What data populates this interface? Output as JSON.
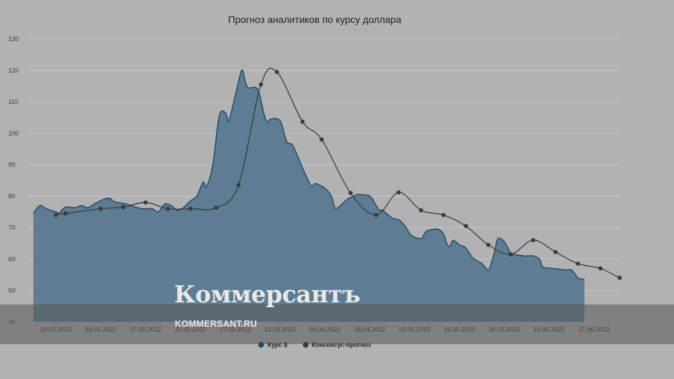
{
  "chart_data": {
    "type": "area",
    "title": "Прогноз аналитиков по курсу доллара",
    "xlabel": "",
    "ylabel": "",
    "ylim": [
      40,
      130
    ],
    "yticks": [
      40,
      50,
      60,
      70,
      80,
      90,
      100,
      110,
      120,
      130
    ],
    "xlim": [
      "2022-01-03",
      "2022-07-05"
    ],
    "xtick_labels": [
      "10.01.2022",
      "24.01.2022",
      "07.02.2022",
      "21.02.2022",
      "07.03.2022",
      "21.03.2022",
      "04.04.2022",
      "18.04.2022",
      "02.05.2022",
      "16.05.2022",
      "30.05.2022",
      "13.06.2022",
      "27.06.2022"
    ],
    "grid": true,
    "legend_position": "bottom",
    "series": [
      {
        "name": "Курс $",
        "type": "area",
        "color": "#5a7a90",
        "line_color": "#1e4a6a",
        "points": [
          [
            "2022-01-03",
            74.5
          ],
          [
            "2022-01-05",
            77
          ],
          [
            "2022-01-07",
            76
          ],
          [
            "2022-01-10",
            75
          ],
          [
            "2022-01-11",
            74.6
          ],
          [
            "2022-01-13",
            76.5
          ],
          [
            "2022-01-16",
            76.3
          ],
          [
            "2022-01-18",
            77
          ],
          [
            "2022-01-20",
            76.3
          ],
          [
            "2022-01-22",
            77.5
          ],
          [
            "2022-01-25",
            79
          ],
          [
            "2022-01-27",
            79.3
          ],
          [
            "2022-01-28",
            78.3
          ],
          [
            "2022-02-01",
            77.5
          ],
          [
            "2022-02-04",
            76.5
          ],
          [
            "2022-02-06",
            76
          ],
          [
            "2022-02-09",
            76
          ],
          [
            "2022-02-11",
            75
          ],
          [
            "2022-02-13",
            77.5
          ],
          [
            "2022-02-15",
            77
          ],
          [
            "2022-02-17",
            75.5
          ],
          [
            "2022-02-19",
            76.5
          ],
          [
            "2022-02-21",
            78.5
          ],
          [
            "2022-02-23",
            80
          ],
          [
            "2022-02-25",
            84.5
          ],
          [
            "2022-02-26",
            83
          ],
          [
            "2022-02-28",
            90
          ],
          [
            "2022-03-02",
            105.5
          ],
          [
            "2022-03-04",
            106.5
          ],
          [
            "2022-03-05",
            104
          ],
          [
            "2022-03-07",
            112
          ],
          [
            "2022-03-09",
            120
          ],
          [
            "2022-03-10",
            117
          ],
          [
            "2022-03-11",
            114.5
          ],
          [
            "2022-03-14",
            114
          ],
          [
            "2022-03-16",
            106
          ],
          [
            "2022-03-17",
            103.5
          ],
          [
            "2022-03-18",
            104.5
          ],
          [
            "2022-03-21",
            104
          ],
          [
            "2022-03-23",
            97.5
          ],
          [
            "2022-03-25",
            96
          ],
          [
            "2022-03-28",
            89
          ],
          [
            "2022-03-30",
            84.5
          ],
          [
            "2022-03-31",
            83
          ],
          [
            "2022-04-01",
            84
          ],
          [
            "2022-04-04",
            82.5
          ],
          [
            "2022-04-06",
            80
          ],
          [
            "2022-04-07",
            76.5
          ],
          [
            "2022-04-08",
            76.3
          ],
          [
            "2022-04-11",
            79
          ],
          [
            "2022-04-13",
            80
          ],
          [
            "2022-04-14",
            80.5
          ],
          [
            "2022-04-15",
            80.5
          ],
          [
            "2022-04-18",
            80
          ],
          [
            "2022-04-20",
            77
          ],
          [
            "2022-04-21",
            75.5
          ],
          [
            "2022-04-22",
            75.5
          ],
          [
            "2022-04-25",
            73
          ],
          [
            "2022-04-27",
            72.5
          ],
          [
            "2022-04-29",
            70.5
          ],
          [
            "2022-05-01",
            67.5
          ],
          [
            "2022-05-04",
            66.5
          ],
          [
            "2022-05-05",
            68
          ],
          [
            "2022-05-06",
            69
          ],
          [
            "2022-05-09",
            69.5
          ],
          [
            "2022-05-11",
            68
          ],
          [
            "2022-05-12",
            65
          ],
          [
            "2022-05-13",
            64
          ],
          [
            "2022-05-14",
            66
          ],
          [
            "2022-05-16",
            64.5
          ],
          [
            "2022-05-18",
            63.5
          ],
          [
            "2022-05-20",
            60.5
          ],
          [
            "2022-05-23",
            58.5
          ],
          [
            "2022-05-25",
            56.5
          ],
          [
            "2022-05-26",
            59
          ],
          [
            "2022-05-27",
            62.5
          ],
          [
            "2022-05-28",
            66.5
          ],
          [
            "2022-05-30",
            65.5
          ],
          [
            "2022-06-01",
            62
          ],
          [
            "2022-06-03",
            61.3
          ],
          [
            "2022-06-05",
            61
          ],
          [
            "2022-06-07",
            61
          ],
          [
            "2022-06-08",
            61
          ],
          [
            "2022-06-10",
            60
          ],
          [
            "2022-06-11",
            57.5
          ],
          [
            "2022-06-14",
            57
          ],
          [
            "2022-06-16",
            56.8
          ],
          [
            "2022-06-18",
            56.5
          ],
          [
            "2022-06-20",
            56.5
          ],
          [
            "2022-06-22",
            54
          ],
          [
            "2022-06-24",
            53.5
          ]
        ]
      },
      {
        "name": "Консенсус-прогноз",
        "type": "line",
        "color": "#3a3a3a",
        "points": [
          [
            "2022-01-10",
            74
          ],
          [
            "2022-01-13",
            74.5
          ],
          [
            "2022-01-24",
            76
          ],
          [
            "2022-01-31",
            76.5
          ],
          [
            "2022-02-07",
            78
          ],
          [
            "2022-02-14",
            76
          ],
          [
            "2022-02-21",
            76
          ],
          [
            "2022-03-01",
            76.3
          ],
          [
            "2022-03-08",
            83.5
          ],
          [
            "2022-03-15",
            115.5
          ],
          [
            "2022-03-20",
            119.5
          ],
          [
            "2022-03-28",
            103.7
          ],
          [
            "2022-04-03",
            98
          ],
          [
            "2022-04-12",
            81
          ],
          [
            "2022-04-20",
            74
          ],
          [
            "2022-04-27",
            81.2
          ],
          [
            "2022-05-04",
            75.5
          ],
          [
            "2022-05-11",
            74
          ],
          [
            "2022-05-18",
            70.5
          ],
          [
            "2022-05-25",
            64.5
          ],
          [
            "2022-06-01",
            61.5
          ],
          [
            "2022-06-08",
            66
          ],
          [
            "2022-06-15",
            62.2
          ],
          [
            "2022-06-22",
            58.5
          ],
          [
            "2022-06-29",
            57
          ],
          [
            "2022-07-05",
            54
          ]
        ]
      }
    ]
  },
  "watermark": {
    "brand": "Коммерсантъ",
    "url": "KOMMERSANT.RU"
  },
  "colors": {
    "background": "#b2b2b2",
    "area_fill": "#5a7a90",
    "area_line": "#1e4a6a",
    "consensus_line": "#3a3a3a"
  }
}
